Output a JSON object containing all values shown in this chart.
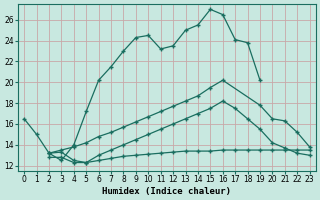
{
  "xlabel": "Humidex (Indice chaleur)",
  "background_color": "#c8e8e0",
  "grid_color": "#c8a8a8",
  "line_color": "#1a6e60",
  "ylim": [
    11.5,
    27.5
  ],
  "xlim": [
    -0.5,
    23.5
  ],
  "yticks": [
    12,
    14,
    16,
    18,
    20,
    22,
    24,
    26
  ],
  "xticks": [
    0,
    1,
    2,
    3,
    4,
    5,
    6,
    7,
    8,
    9,
    10,
    11,
    12,
    13,
    14,
    15,
    16,
    17,
    18,
    19,
    20,
    21,
    22,
    23
  ],
  "line1_x": [
    0,
    1,
    2,
    3,
    4,
    5,
    6,
    7,
    8,
    9,
    10,
    11,
    12,
    13,
    14,
    15,
    16,
    17,
    18,
    19
  ],
  "line1_y": [
    16.5,
    15.0,
    13.2,
    12.5,
    14.0,
    17.2,
    20.2,
    21.5,
    23.0,
    24.3,
    24.5,
    23.2,
    23.5,
    25.0,
    25.5,
    27.0,
    26.5,
    24.1,
    23.8,
    20.2
  ],
  "line2_x": [
    2,
    3,
    4,
    5,
    6,
    7,
    8,
    9,
    10,
    11,
    12,
    13,
    14,
    15,
    16,
    19,
    20,
    21,
    22,
    23
  ],
  "line2_y": [
    13.2,
    13.5,
    13.8,
    14.2,
    14.8,
    15.2,
    15.7,
    16.2,
    16.7,
    17.2,
    17.7,
    18.2,
    18.7,
    19.5,
    20.2,
    17.8,
    16.5,
    16.3,
    15.2,
    13.8
  ],
  "line3_x": [
    2,
    3,
    4,
    5,
    6,
    7,
    8,
    9,
    10,
    11,
    12,
    13,
    14,
    15,
    16,
    17,
    18,
    19,
    20,
    21,
    22,
    23
  ],
  "line3_y": [
    13.2,
    13.3,
    12.5,
    12.3,
    13.0,
    13.5,
    14.0,
    14.5,
    15.0,
    15.5,
    16.0,
    16.5,
    17.0,
    17.5,
    18.2,
    17.5,
    16.5,
    15.5,
    14.2,
    13.7,
    13.2,
    13.0
  ],
  "line4_x": [
    2,
    3,
    4,
    5,
    6,
    7,
    8,
    9,
    10,
    11,
    12,
    13,
    14,
    15,
    16,
    17,
    18,
    19,
    20,
    21,
    22,
    23
  ],
  "line4_y": [
    12.8,
    12.8,
    12.3,
    12.3,
    12.5,
    12.7,
    12.9,
    13.0,
    13.1,
    13.2,
    13.3,
    13.4,
    13.4,
    13.4,
    13.5,
    13.5,
    13.5,
    13.5,
    13.5,
    13.5,
    13.5,
    13.5
  ]
}
